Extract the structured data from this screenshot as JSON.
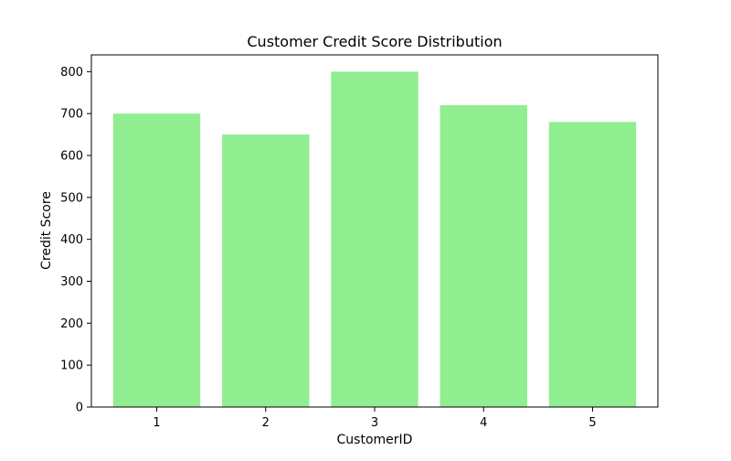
{
  "chart_data": {
    "type": "bar",
    "title": "Customer Credit Score Distribution",
    "xlabel": "CustomerID",
    "ylabel": "Credit Score",
    "categories": [
      "1",
      "2",
      "3",
      "4",
      "5"
    ],
    "values": [
      700,
      650,
      800,
      720,
      680
    ],
    "ylim": [
      0,
      840
    ],
    "yticks": [
      0,
      100,
      200,
      300,
      400,
      500,
      600,
      700,
      800
    ],
    "grid": false,
    "legend": "none",
    "bar_color": "#90ee90"
  }
}
